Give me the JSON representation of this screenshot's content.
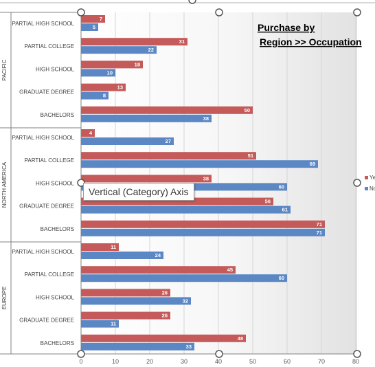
{
  "chart_data": {
    "type": "bar",
    "orientation": "horizontal",
    "title_lines": [
      "Purchase by",
      "Region >> Occupation"
    ],
    "groups": [
      "PACIFIC",
      "NORTH AMERICA",
      "EUROPE"
    ],
    "categories": [
      {
        "group": "PACIFIC",
        "label": "PARTIAL HIGH SCHOOL"
      },
      {
        "group": "PACIFIC",
        "label": "PARTIAL COLLEGE"
      },
      {
        "group": "PACIFIC",
        "label": "HIGH SCHOOL"
      },
      {
        "group": "PACIFIC",
        "label": "GRADUATE DEGREE"
      },
      {
        "group": "PACIFIC",
        "label": "BACHELORS"
      },
      {
        "group": "NORTH AMERICA",
        "label": "PARTIAL HIGH SCHOOL"
      },
      {
        "group": "NORTH AMERICA",
        "label": "PARTIAL COLLEGE"
      },
      {
        "group": "NORTH AMERICA",
        "label": "HIGH SCHOOL"
      },
      {
        "group": "NORTH AMERICA",
        "label": "GRADUATE DEGREE"
      },
      {
        "group": "NORTH AMERICA",
        "label": "BACHELORS"
      },
      {
        "group": "EUROPE",
        "label": "PARTIAL HIGH SCHOOL"
      },
      {
        "group": "EUROPE",
        "label": "PARTIAL COLLEGE"
      },
      {
        "group": "EUROPE",
        "label": "HIGH SCHOOL"
      },
      {
        "group": "EUROPE",
        "label": "GRADUATE DEGREE"
      },
      {
        "group": "EUROPE",
        "label": "BACHELORS"
      }
    ],
    "series": [
      {
        "name": "Ye",
        "color": "#c55a5a",
        "values": [
          7,
          31,
          18,
          13,
          50,
          4,
          51,
          38,
          56,
          71,
          11,
          45,
          26,
          26,
          48
        ]
      },
      {
        "name": "No",
        "color": "#5b87c4",
        "values": [
          5,
          22,
          10,
          8,
          38,
          27,
          69,
          60,
          61,
          71,
          24,
          60,
          32,
          11,
          33
        ]
      }
    ],
    "xlim": [
      0,
      80
    ],
    "x_ticks": [
      0,
      10,
      20,
      30,
      40,
      50,
      60,
      70,
      80
    ],
    "grid": true,
    "legend_position": "right",
    "data_labels": true
  },
  "tooltip": {
    "text": "Vertical (Category) Axis"
  }
}
